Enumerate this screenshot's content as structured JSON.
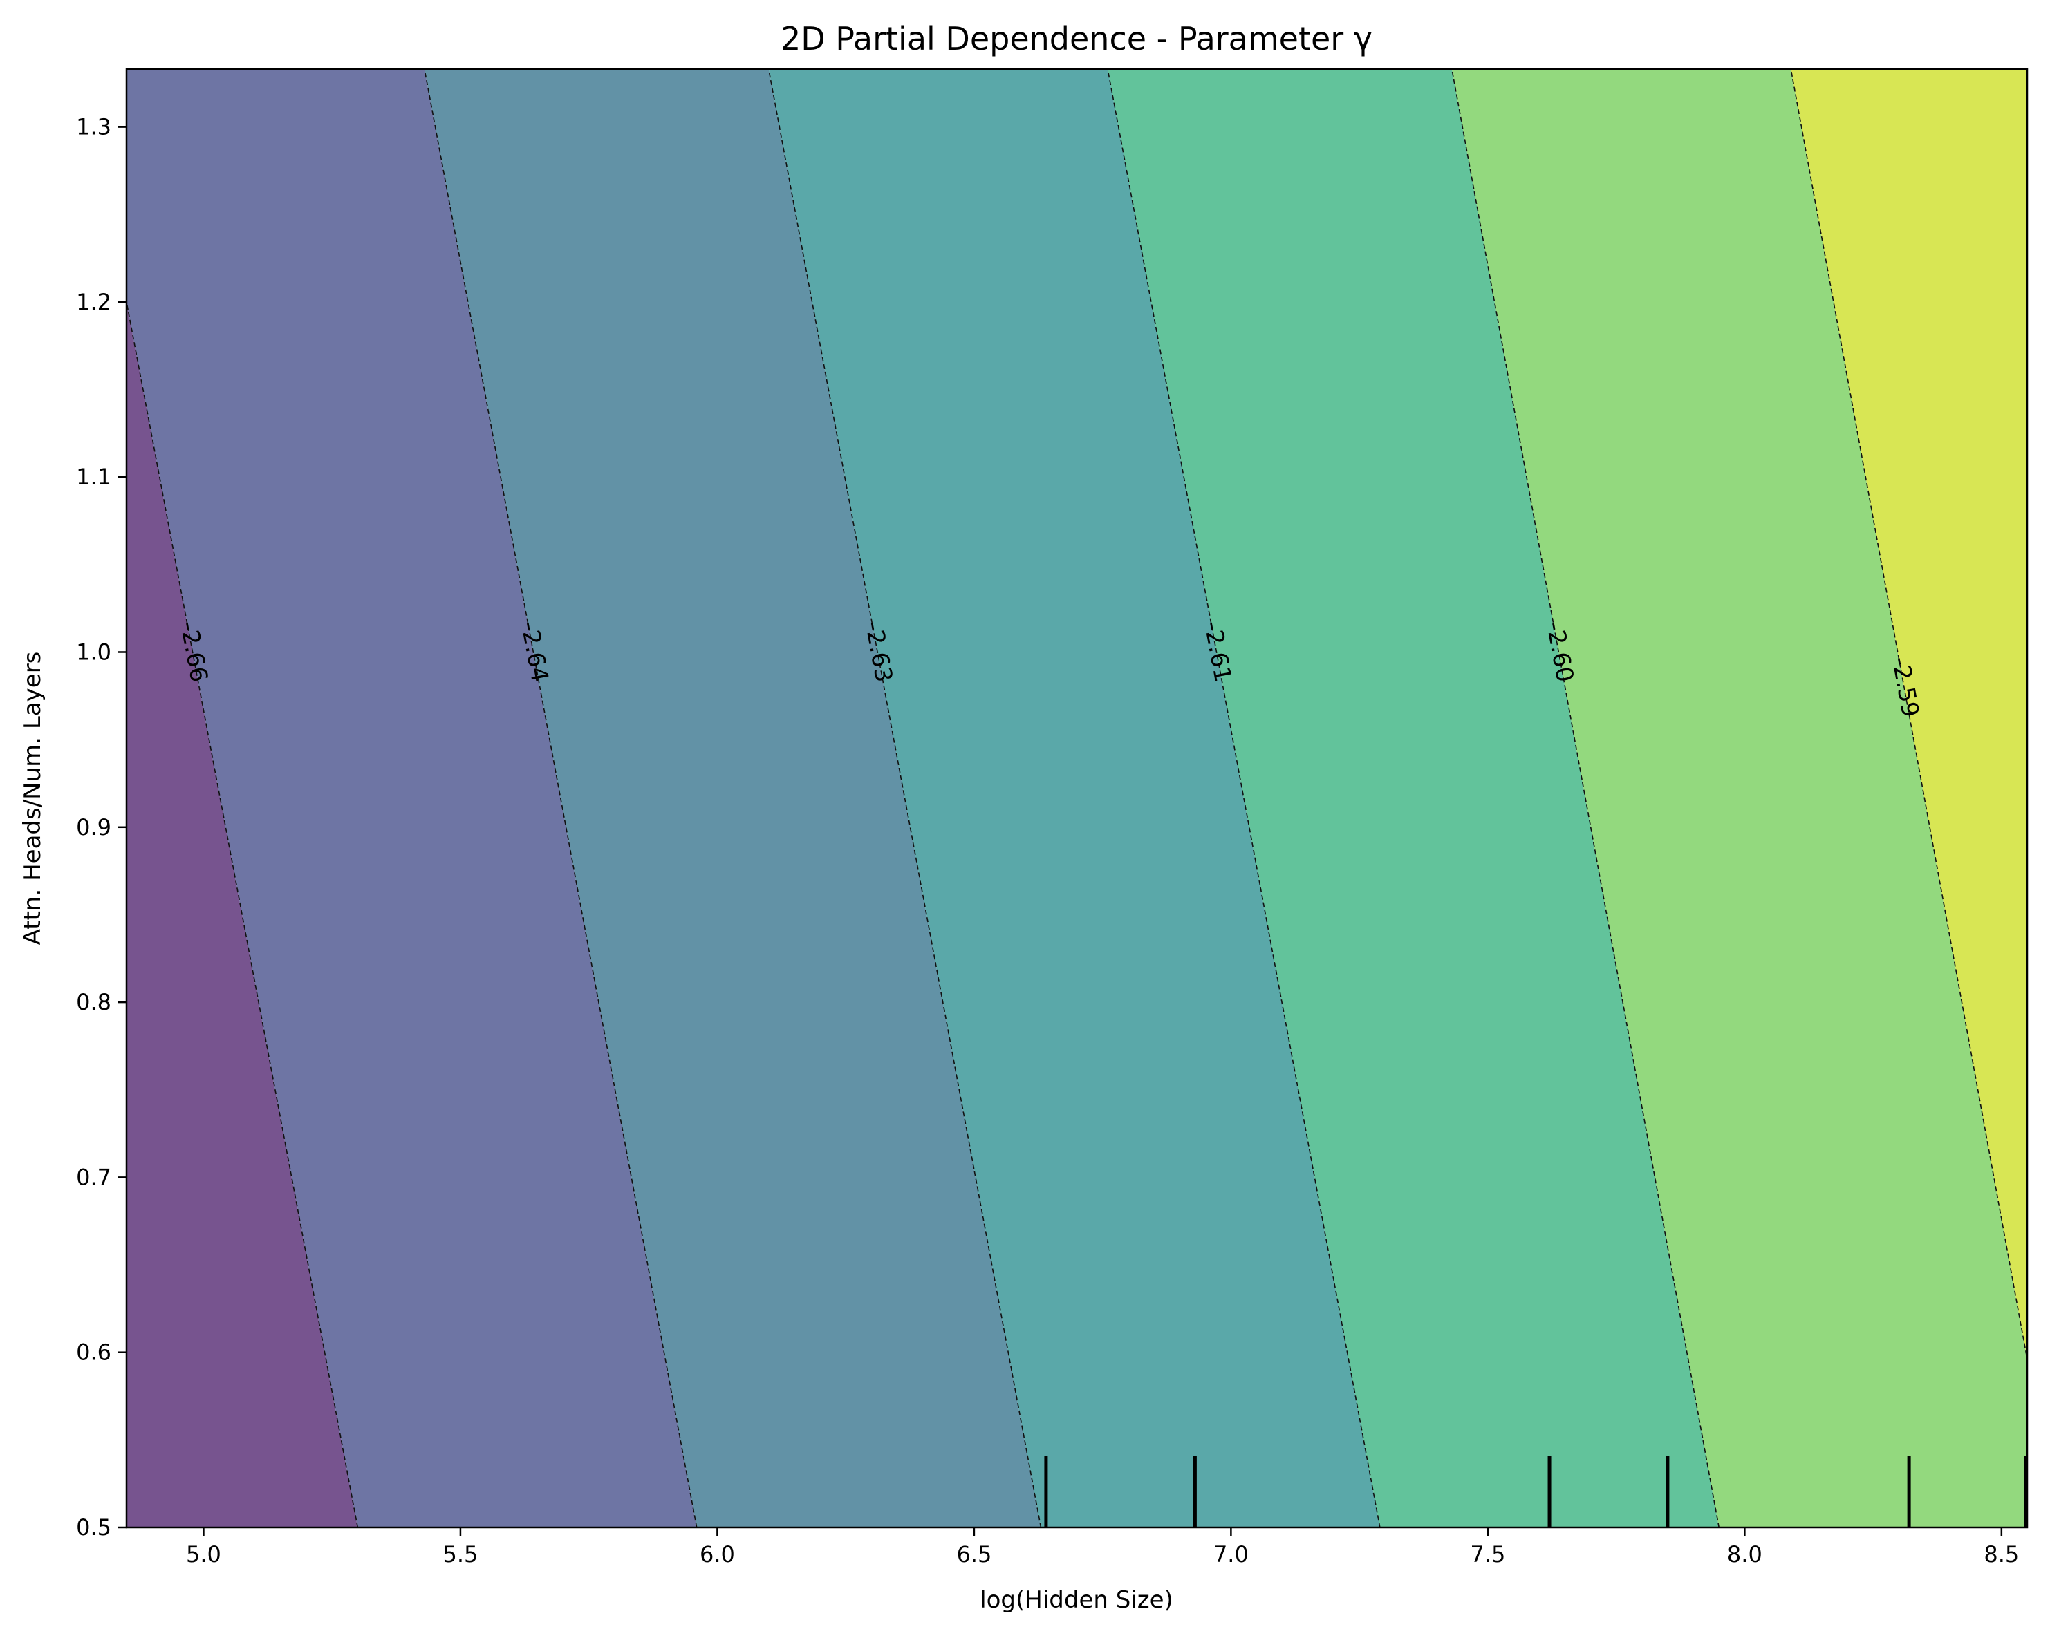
{
  "chart_data": {
    "type": "contourf",
    "title": "2D Partial Dependence - Parameter γ",
    "xlabel": "log(Hidden Size)",
    "ylabel": "Attn. Heads/Num. Layers",
    "xlim": [
      4.85,
      8.55
    ],
    "ylim": [
      0.5,
      1.333
    ],
    "x_ticks": [
      "5.0",
      "5.5",
      "6.0",
      "6.5",
      "7.0",
      "7.5",
      "8.0",
      "8.5"
    ],
    "y_ticks": [
      "0.5",
      "0.6",
      "0.7",
      "0.8",
      "0.9",
      "1.0",
      "1.1",
      "1.2",
      "1.3"
    ],
    "contour_lines": [
      {
        "label": "-2.66",
        "bottom_x": 5.3,
        "top_x": 4.85,
        "top_y": 1.2,
        "label_y": 1.0
      },
      {
        "label": "-2.64",
        "bottom_x": 5.96,
        "top_x": 5.43,
        "top_y": 1.333,
        "label_y": 1.0
      },
      {
        "label": "-2.63",
        "bottom_x": 6.63,
        "top_x": 6.1,
        "top_y": 1.333,
        "label_y": 1.0
      },
      {
        "label": "-2.61",
        "bottom_x": 7.29,
        "top_x": 6.76,
        "top_y": 1.333,
        "label_y": 1.0
      },
      {
        "label": "-2.60",
        "bottom_x": 7.95,
        "top_x": 7.43,
        "top_y": 1.333,
        "label_y": 1.0
      },
      {
        "label": "-2.59",
        "bottom_x": 8.61,
        "top_x": 8.09,
        "top_y": 1.333,
        "label_y": 0.98
      }
    ],
    "band_colors": [
      "#77548f",
      "#6e75a4",
      "#6292a6",
      "#5aa8a9",
      "#62c39b",
      "#93d97e",
      "#d8e654"
    ],
    "rug_x": [
      6.64,
      6.93,
      7.62,
      7.85,
      8.32,
      8.55
    ],
    "grid": false
  }
}
